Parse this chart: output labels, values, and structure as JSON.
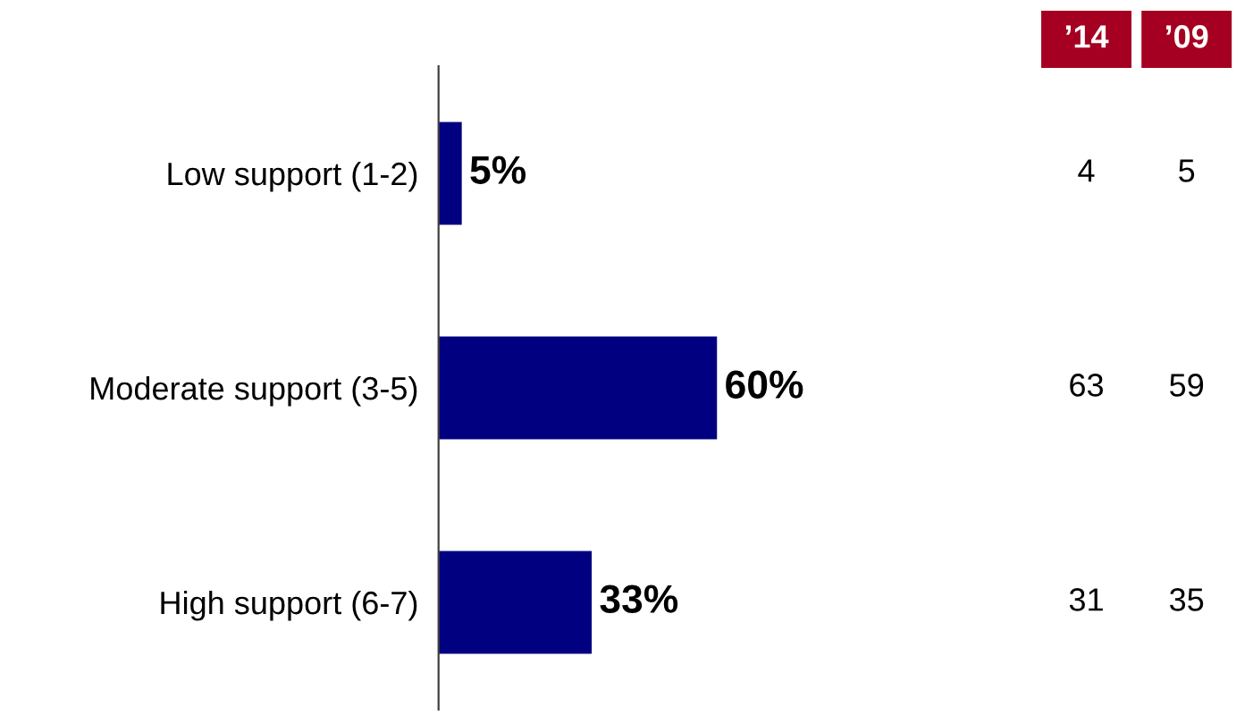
{
  "chart_data": {
    "type": "bar",
    "orientation": "horizontal",
    "categories": [
      "Low support (1-2)",
      "Moderate support (3-5)",
      "High support (6-7)"
    ],
    "series": [
      {
        "color": "#000080",
        "values": [
          5,
          60,
          33
        ],
        "value_labels": [
          "5%",
          "60%",
          "33%"
        ]
      }
    ],
    "annotations": [
      "’14",
      "’09",
      "4",
      "5",
      "63",
      "59",
      "31",
      "35"
    ],
    "grid": false
  }
}
